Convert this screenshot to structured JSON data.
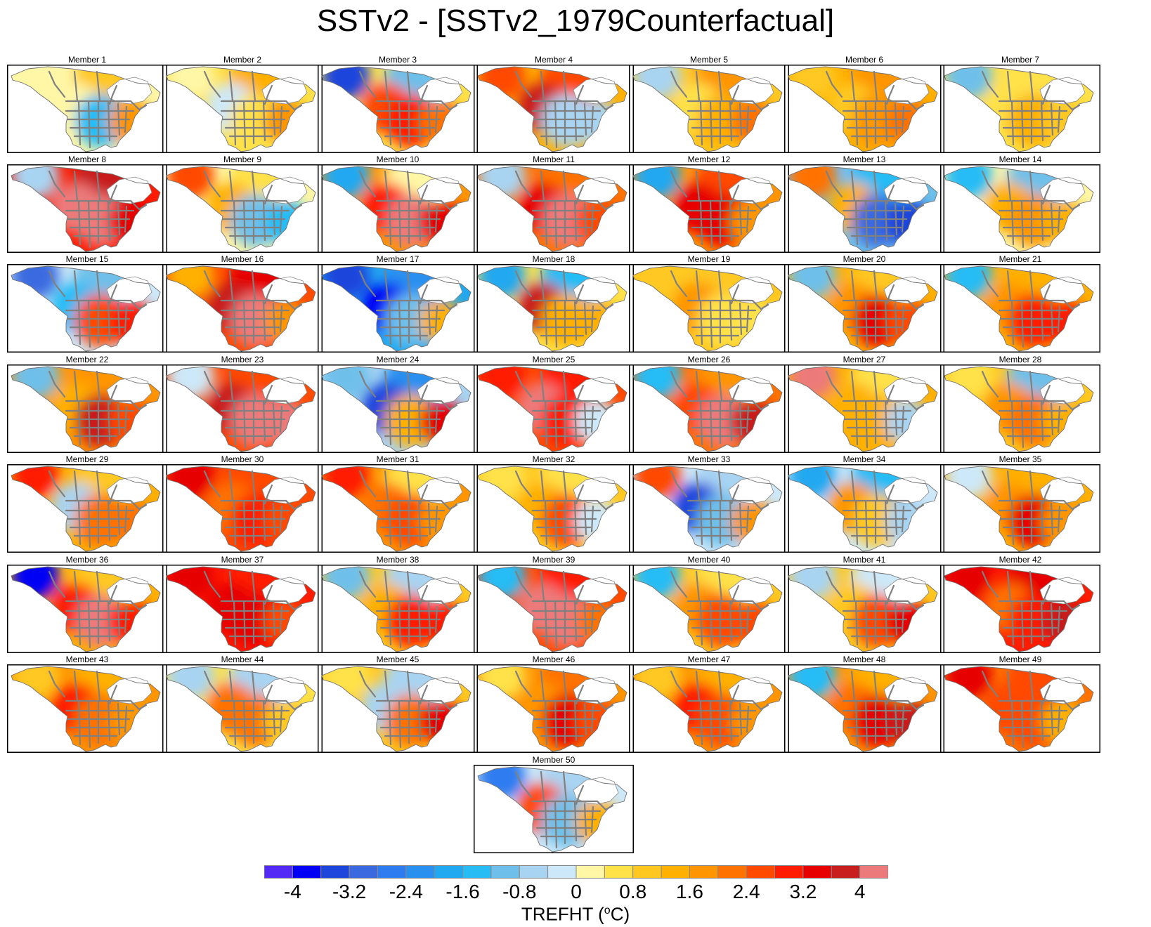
{
  "chart_data": {
    "type": "heatmap",
    "title": "SSTv2 - [SSTv2_1979Counterfactual]",
    "panel_label_prefix": "Member",
    "variable": "TREFHT",
    "units": "°C",
    "colorbar_label_main": "TREFHT (",
    "colorbar_label_sup": "o",
    "colorbar_label_end": "C)",
    "legend_position": "bottom",
    "colorbar": {
      "boundaries": [
        -4.4,
        -4,
        -3.6,
        -3.2,
        -2.8,
        -2.4,
        -2,
        -1.6,
        -1.2,
        -0.8,
        -0.4,
        0,
        0.4,
        0.8,
        1.2,
        1.6,
        2,
        2.4,
        2.8,
        3.2,
        3.6,
        4,
        4.4
      ],
      "tick_labels": [
        "-4",
        "-3.2",
        "-2.4",
        "-1.6",
        "-0.8",
        "0",
        "0.8",
        "1.6",
        "2.4",
        "3.2",
        "4"
      ],
      "tick_values": [
        -4,
        -3.2,
        -2.4,
        -1.6,
        -0.8,
        0,
        0.8,
        1.6,
        2.4,
        3.2,
        4
      ],
      "colors": [
        "#5229f5",
        "#0000f5",
        "#1e45dc",
        "#3b6ae0",
        "#2f7cf0",
        "#2a90f0",
        "#20a8f0",
        "#28bcf5",
        "#6ec0ea",
        "#a8d4f2",
        "#cde8f8",
        "#fff6a6",
        "#ffe148",
        "#ffc820",
        "#ffb000",
        "#ff9500",
        "#ff7200",
        "#ff4a00",
        "#ff1c00",
        "#e60000",
        "#c81e1e",
        "#ec7a7a"
      ]
    },
    "region": "North America",
    "members": [
      {
        "member": 1,
        "west": 0.3,
        "central": -1.4,
        "east": 1.6,
        "north": 0.8,
        "alaska": 0.2
      },
      {
        "member": 2,
        "west": -0.4,
        "central": 0.6,
        "east": 1.6,
        "north": 1.4,
        "alaska": 0.3
      },
      {
        "member": 3,
        "west": 2.4,
        "central": 3.0,
        "east": 2.0,
        "north": -1.2,
        "alaska": -3.6
      },
      {
        "member": 4,
        "west": 3.6,
        "central": -0.6,
        "east": -0.8,
        "north": 2.4,
        "alaska": 2.4
      },
      {
        "member": 5,
        "west": 0.4,
        "central": 1.2,
        "east": 2.0,
        "north": 1.6,
        "alaska": -0.6
      },
      {
        "member": 6,
        "west": 0.8,
        "central": 1.8,
        "east": 2.0,
        "north": 1.6,
        "alaska": 0.8
      },
      {
        "member": 7,
        "west": 0.6,
        "central": 1.2,
        "east": 0.8,
        "north": 0.6,
        "alaska": -1.0
      },
      {
        "member": 8,
        "west": 4.4,
        "central": 4.4,
        "east": 3.2,
        "north": 3.6,
        "alaska": -0.6
      },
      {
        "member": 9,
        "west": 1.4,
        "central": -1.2,
        "east": -1.6,
        "north": 0.4,
        "alaska": 2.4
      },
      {
        "member": 10,
        "west": 2.8,
        "central": 4.0,
        "east": 3.4,
        "north": 0.2,
        "alaska": -1.8
      },
      {
        "member": 11,
        "west": 3.2,
        "central": 4.0,
        "east": 2.6,
        "north": 2.0,
        "alaska": -0.6
      },
      {
        "member": 12,
        "west": 3.4,
        "central": 3.2,
        "east": 1.6,
        "north": 2.4,
        "alaska": -2.0
      },
      {
        "member": 13,
        "west": 1.2,
        "central": -3.2,
        "east": -3.6,
        "north": -1.6,
        "alaska": 2.0
      },
      {
        "member": 14,
        "west": 1.2,
        "central": 1.6,
        "east": 1.2,
        "north": -1.2,
        "alaska": -1.6
      },
      {
        "member": 15,
        "west": -1.6,
        "central": 2.4,
        "east": 3.0,
        "north": -1.0,
        "alaska": -3.2
      },
      {
        "member": 16,
        "west": 3.6,
        "central": 4.0,
        "east": 1.8,
        "north": 3.2,
        "alaska": 1.2
      },
      {
        "member": 17,
        "west": -3.8,
        "central": -1.2,
        "east": 1.2,
        "north": -2.4,
        "alaska": -3.6
      },
      {
        "member": 18,
        "west": 3.6,
        "central": 1.2,
        "east": 1.2,
        "north": -1.4,
        "alaska": -1.8
      },
      {
        "member": 19,
        "west": 1.6,
        "central": 0.4,
        "east": 0.6,
        "north": 0.8,
        "alaska": 0.8
      },
      {
        "member": 20,
        "west": 1.6,
        "central": 3.2,
        "east": 2.4,
        "north": 0.8,
        "alaska": -1.0
      },
      {
        "member": 21,
        "west": 1.6,
        "central": 2.8,
        "east": 2.8,
        "north": 1.2,
        "alaska": -1.6
      },
      {
        "member": 22,
        "west": 1.4,
        "central": 3.6,
        "east": 2.4,
        "north": 1.6,
        "alaska": -1.0
      },
      {
        "member": 23,
        "west": 3.6,
        "central": 4.0,
        "east": 4.0,
        "north": 2.4,
        "alaska": -0.4
      },
      {
        "member": 24,
        "west": -3.6,
        "central": 1.2,
        "east": 3.2,
        "north": -2.4,
        "alaska": -1.2
      },
      {
        "member": 25,
        "west": 4.0,
        "central": 2.8,
        "east": -0.4,
        "north": 2.8,
        "alaska": 2.8
      },
      {
        "member": 26,
        "west": 2.4,
        "central": 4.0,
        "east": 3.6,
        "north": 1.6,
        "alaska": -1.6
      },
      {
        "member": 27,
        "west": 1.2,
        "central": 1.2,
        "east": -0.6,
        "north": 0.4,
        "alaska": 4.0
      },
      {
        "member": 28,
        "west": 1.6,
        "central": 2.0,
        "east": 1.2,
        "north": -1.0,
        "alaska": 0.6
      },
      {
        "member": 29,
        "west": -0.6,
        "central": 2.0,
        "east": 2.0,
        "north": 0.8,
        "alaska": 2.8
      },
      {
        "member": 30,
        "west": 2.0,
        "central": 3.0,
        "east": 2.4,
        "north": 2.4,
        "alaska": 3.2
      },
      {
        "member": 31,
        "west": 2.0,
        "central": 2.4,
        "east": 1.6,
        "north": 0.4,
        "alaska": 2.8
      },
      {
        "member": 32,
        "west": 1.2,
        "central": 2.4,
        "east": -0.4,
        "north": 0.6,
        "alaska": 0.4
      },
      {
        "member": 33,
        "west": -3.4,
        "central": -1.2,
        "east": 1.6,
        "north": -0.6,
        "alaska": 2.4
      },
      {
        "member": 34,
        "west": 1.6,
        "central": 0.8,
        "east": -0.8,
        "north": -1.6,
        "alaska": -2.0
      },
      {
        "member": 35,
        "west": 1.6,
        "central": 3.2,
        "east": 1.6,
        "north": 1.2,
        "alaska": -0.4
      },
      {
        "member": 36,
        "west": 2.8,
        "central": 4.0,
        "east": 2.8,
        "north": 0.8,
        "alaska": -4.0
      },
      {
        "member": 37,
        "west": 3.2,
        "central": 3.2,
        "east": 2.4,
        "north": 3.0,
        "alaska": 3.2
      },
      {
        "member": 38,
        "west": 1.2,
        "central": 2.8,
        "east": 2.8,
        "north": -0.6,
        "alaska": -1.2
      },
      {
        "member": 39,
        "west": 4.4,
        "central": 4.4,
        "east": 2.0,
        "north": 3.0,
        "alaska": -1.6
      },
      {
        "member": 40,
        "west": 1.6,
        "central": 2.4,
        "east": 2.4,
        "north": 0.4,
        "alaska": -1.4
      },
      {
        "member": 41,
        "west": 0.8,
        "central": 2.4,
        "east": 3.2,
        "north": -0.4,
        "alaska": -0.8
      },
      {
        "member": 42,
        "west": 2.0,
        "central": 2.8,
        "east": 3.6,
        "north": 3.2,
        "alaska": 3.2
      },
      {
        "member": 43,
        "west": 2.8,
        "central": 2.0,
        "east": 1.6,
        "north": 1.2,
        "alaska": 0.8
      },
      {
        "member": 44,
        "west": 2.0,
        "central": 2.0,
        "east": 0.8,
        "north": -0.6,
        "alaska": -0.8
      },
      {
        "member": 45,
        "west": -0.6,
        "central": 2.0,
        "east": 3.2,
        "north": -0.8,
        "alaska": 0.4
      },
      {
        "member": 46,
        "west": 1.6,
        "central": 3.2,
        "east": 2.4,
        "north": 2.0,
        "alaska": 0.4
      },
      {
        "member": 47,
        "west": 2.8,
        "central": 2.4,
        "east": 1.6,
        "north": 1.2,
        "alaska": 0.8
      },
      {
        "member": 48,
        "west": 2.0,
        "central": 3.2,
        "east": 3.6,
        "north": 1.2,
        "alaska": -1.4
      },
      {
        "member": 49,
        "west": 2.4,
        "central": 2.4,
        "east": 1.2,
        "north": 2.4,
        "alaska": 3.2
      },
      {
        "member": 50,
        "west": 2.4,
        "central": -1.2,
        "east": 1.2,
        "north": -0.6,
        "alaska": -2.8
      }
    ]
  }
}
